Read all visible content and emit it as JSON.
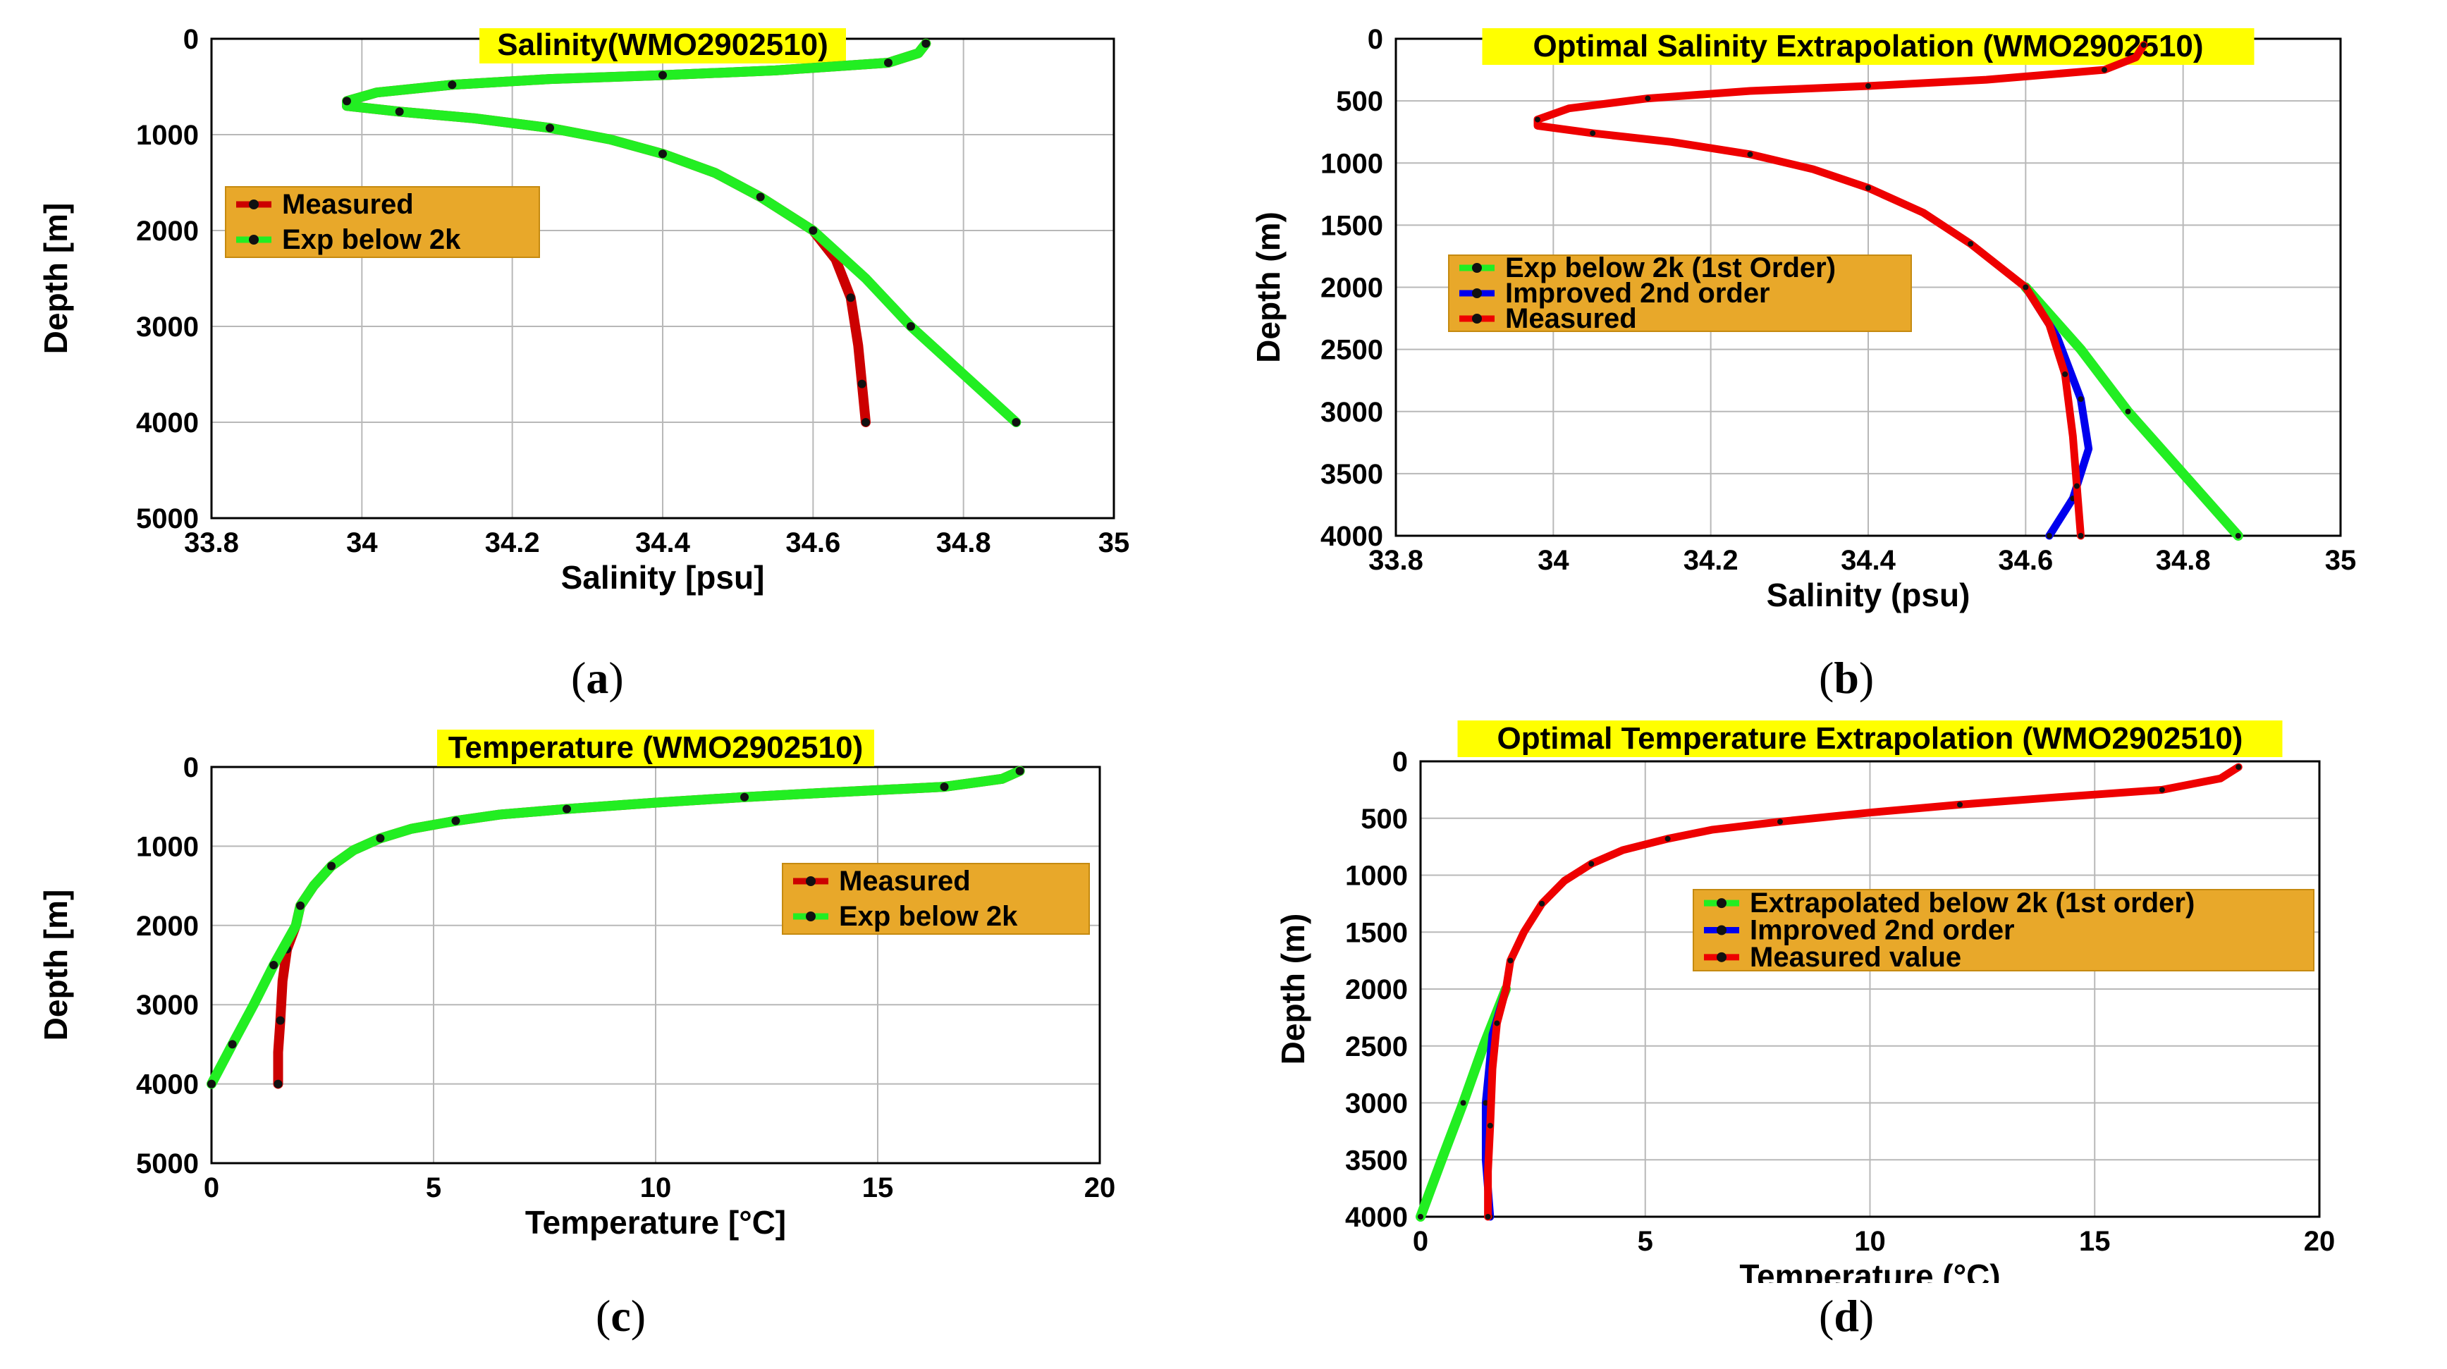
{
  "captions": {
    "a": "a",
    "b": "b",
    "c": "c",
    "d": "d"
  },
  "chart_data": [
    {
      "id": "a",
      "type": "line",
      "title": "Salinity(WMO2902510)",
      "xlabel": "Salinity [psu]",
      "ylabel": "Depth [m]",
      "xlim": [
        33.8,
        35
      ],
      "ylim": [
        0,
        5000
      ],
      "xticks": [
        "33.8",
        "34",
        "34.2",
        "34.4",
        "34.6",
        "34.8",
        "35"
      ],
      "yticks": [
        "0",
        "1000",
        "2000",
        "3000",
        "4000",
        "5000"
      ],
      "legend": [
        "Measured",
        "Exp below 2k"
      ],
      "series": [
        {
          "name": "Measured",
          "color": "#cc0000",
          "marker": "diamond",
          "points": [
            [
              34.75,
              50
            ],
            [
              34.74,
              150
            ],
            [
              34.7,
              250
            ],
            [
              34.55,
              330
            ],
            [
              34.4,
              380
            ],
            [
              34.25,
              420
            ],
            [
              34.12,
              480
            ],
            [
              34.02,
              560
            ],
            [
              33.98,
              650
            ],
            [
              33.98,
              700
            ],
            [
              34.05,
              760
            ],
            [
              34.15,
              830
            ],
            [
              34.25,
              930
            ],
            [
              34.33,
              1050
            ],
            [
              34.4,
              1200
            ],
            [
              34.47,
              1400
            ],
            [
              34.53,
              1650
            ],
            [
              34.58,
              1900
            ],
            [
              34.6,
              2000
            ],
            [
              34.63,
              2300
            ],
            [
              34.65,
              2700
            ],
            [
              34.66,
              3200
            ],
            [
              34.665,
              3600
            ],
            [
              34.67,
              4000
            ]
          ]
        },
        {
          "name": "Exp below 2k",
          "color": "#22ee22",
          "marker": "circle",
          "points": [
            [
              34.75,
              50
            ],
            [
              34.74,
              150
            ],
            [
              34.7,
              250
            ],
            [
              34.55,
              330
            ],
            [
              34.4,
              380
            ],
            [
              34.25,
              420
            ],
            [
              34.12,
              480
            ],
            [
              34.02,
              560
            ],
            [
              33.98,
              650
            ],
            [
              33.98,
              700
            ],
            [
              34.05,
              760
            ],
            [
              34.15,
              830
            ],
            [
              34.25,
              930
            ],
            [
              34.33,
              1050
            ],
            [
              34.4,
              1200
            ],
            [
              34.47,
              1400
            ],
            [
              34.53,
              1650
            ],
            [
              34.58,
              1900
            ],
            [
              34.6,
              2000
            ],
            [
              34.67,
              2500
            ],
            [
              34.73,
              3000
            ],
            [
              34.8,
              3500
            ],
            [
              34.87,
              4000
            ]
          ]
        }
      ]
    },
    {
      "id": "b",
      "type": "line",
      "title": "Optimal Salinity Extrapolation (WMO2902510)",
      "xlabel": "Salinity (psu)",
      "ylabel": "Depth (m)",
      "xlim": [
        33.8,
        35
      ],
      "ylim": [
        0,
        4000
      ],
      "xticks": [
        "33.8",
        "34",
        "34.2",
        "34.4",
        "34.6",
        "34.8",
        "35"
      ],
      "yticks": [
        "0",
        "500",
        "1000",
        "1500",
        "2000",
        "2500",
        "3000",
        "3500",
        "4000"
      ],
      "legend": [
        "Exp below 2k (1st Order)",
        "Improved 2nd order",
        "Measured"
      ],
      "series": [
        {
          "name": "Exp below 2k (1st Order)",
          "color": "#22ee22",
          "points": [
            [
              34.6,
              2000
            ],
            [
              34.67,
              2500
            ],
            [
              34.73,
              3000
            ],
            [
              34.8,
              3500
            ],
            [
              34.87,
              4000
            ]
          ]
        },
        {
          "name": "Improved 2nd order",
          "color": "#0000ee",
          "points": [
            [
              34.6,
              2000
            ],
            [
              34.64,
              2400
            ],
            [
              34.67,
              2900
            ],
            [
              34.68,
              3300
            ],
            [
              34.66,
              3700
            ],
            [
              34.63,
              4000
            ]
          ]
        },
        {
          "name": "Measured",
          "color": "#ee0000",
          "points": [
            [
              34.75,
              50
            ],
            [
              34.74,
              150
            ],
            [
              34.7,
              250
            ],
            [
              34.55,
              330
            ],
            [
              34.4,
              380
            ],
            [
              34.25,
              420
            ],
            [
              34.12,
              480
            ],
            [
              34.02,
              560
            ],
            [
              33.98,
              650
            ],
            [
              33.98,
              700
            ],
            [
              34.05,
              760
            ],
            [
              34.15,
              830
            ],
            [
              34.25,
              930
            ],
            [
              34.33,
              1050
            ],
            [
              34.4,
              1200
            ],
            [
              34.47,
              1400
            ],
            [
              34.53,
              1650
            ],
            [
              34.58,
              1900
            ],
            [
              34.6,
              2000
            ],
            [
              34.63,
              2300
            ],
            [
              34.65,
              2700
            ],
            [
              34.66,
              3200
            ],
            [
              34.665,
              3600
            ],
            [
              34.67,
              4000
            ]
          ]
        }
      ]
    },
    {
      "id": "c",
      "type": "line",
      "title": "Temperature (WMO2902510)",
      "xlabel": "Temperature [°C]",
      "ylabel": "Depth [m]",
      "xlim": [
        0,
        20
      ],
      "ylim": [
        0,
        5000
      ],
      "xticks": [
        "0",
        "5",
        "10",
        "15",
        "20"
      ],
      "yticks": [
        "0",
        "1000",
        "2000",
        "3000",
        "4000",
        "5000"
      ],
      "legend": [
        "Measured",
        "Exp below 2k"
      ],
      "series": [
        {
          "name": "Measured",
          "color": "#cc0000",
          "marker": "diamond",
          "points": [
            [
              18.2,
              50
            ],
            [
              17.8,
              150
            ],
            [
              16.5,
              250
            ],
            [
              14.0,
              320
            ],
            [
              12.0,
              380
            ],
            [
              10.0,
              450
            ],
            [
              8.0,
              530
            ],
            [
              6.5,
              600
            ],
            [
              5.5,
              680
            ],
            [
              4.5,
              780
            ],
            [
              3.8,
              900
            ],
            [
              3.2,
              1050
            ],
            [
              2.7,
              1250
            ],
            [
              2.3,
              1500
            ],
            [
              2.0,
              1750
            ],
            [
              1.9,
              2000
            ],
            [
              1.7,
              2300
            ],
            [
              1.6,
              2700
            ],
            [
              1.55,
              3200
            ],
            [
              1.5,
              3600
            ],
            [
              1.5,
              4000
            ]
          ]
        },
        {
          "name": "Exp below 2k",
          "color": "#22ee22",
          "marker": "circle",
          "points": [
            [
              18.2,
              50
            ],
            [
              17.8,
              150
            ],
            [
              16.5,
              250
            ],
            [
              14.0,
              320
            ],
            [
              12.0,
              380
            ],
            [
              10.0,
              450
            ],
            [
              8.0,
              530
            ],
            [
              6.5,
              600
            ],
            [
              5.5,
              680
            ],
            [
              4.5,
              780
            ],
            [
              3.8,
              900
            ],
            [
              3.2,
              1050
            ],
            [
              2.7,
              1250
            ],
            [
              2.3,
              1500
            ],
            [
              2.0,
              1750
            ],
            [
              1.9,
              2000
            ],
            [
              1.4,
              2500
            ],
            [
              0.95,
              3000
            ],
            [
              0.47,
              3500
            ],
            [
              0.0,
              4000
            ]
          ]
        }
      ]
    },
    {
      "id": "d",
      "type": "line",
      "title": "Optimal Temperature Extrapolation (WMO2902510)",
      "xlabel": "Temperature (°C)",
      "ylabel": "Depth (m)",
      "xlim": [
        0,
        20
      ],
      "ylim": [
        0,
        4000
      ],
      "xticks": [
        "0",
        "5",
        "10",
        "15",
        "20"
      ],
      "yticks": [
        "0",
        "500",
        "1000",
        "1500",
        "2000",
        "2500",
        "3000",
        "3500",
        "4000"
      ],
      "legend": [
        "Extrapolated below 2k (1st order)",
        "Improved 2nd order",
        "Measured value"
      ],
      "series": [
        {
          "name": "Extrapolated below 2k (1st order)",
          "color": "#22ee22",
          "points": [
            [
              1.9,
              2000
            ],
            [
              1.4,
              2500
            ],
            [
              0.95,
              3000
            ],
            [
              0.47,
              3500
            ],
            [
              0.0,
              4000
            ]
          ]
        },
        {
          "name": "Improved 2nd order",
          "color": "#0000ee",
          "points": [
            [
              1.9,
              2000
            ],
            [
              1.6,
              2400
            ],
            [
              1.45,
              3000
            ],
            [
              1.45,
              3500
            ],
            [
              1.55,
              4000
            ]
          ]
        },
        {
          "name": "Measured value",
          "color": "#ee0000",
          "points": [
            [
              18.2,
              50
            ],
            [
              17.8,
              150
            ],
            [
              16.5,
              250
            ],
            [
              14.0,
              320
            ],
            [
              12.0,
              380
            ],
            [
              10.0,
              450
            ],
            [
              8.0,
              530
            ],
            [
              6.5,
              600
            ],
            [
              5.5,
              680
            ],
            [
              4.5,
              780
            ],
            [
              3.8,
              900
            ],
            [
              3.2,
              1050
            ],
            [
              2.7,
              1250
            ],
            [
              2.3,
              1500
            ],
            [
              2.0,
              1750
            ],
            [
              1.9,
              2000
            ],
            [
              1.7,
              2300
            ],
            [
              1.6,
              2700
            ],
            [
              1.55,
              3200
            ],
            [
              1.5,
              3600
            ],
            [
              1.5,
              4000
            ]
          ]
        }
      ]
    }
  ]
}
